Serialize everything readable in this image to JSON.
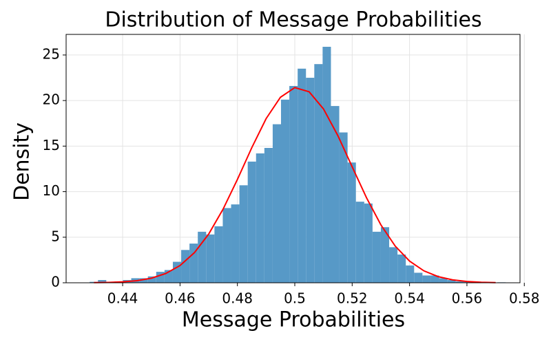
{
  "chart_data": {
    "type": "histogram",
    "title": "Distribution of Message Probabilities",
    "x_label": "Message Probabilities",
    "y_label": "Density",
    "color": "#5799c7",
    "bins": [
      0.4285,
      0.4314,
      0.4343,
      0.4372,
      0.4401,
      0.443,
      0.4459,
      0.4488,
      0.4517,
      0.4546,
      0.4575,
      0.4604,
      0.4633,
      0.4662,
      0.4691,
      0.472,
      0.4749,
      0.4778,
      0.4807,
      0.4836,
      0.4865,
      0.4894,
      0.4923,
      0.4952,
      0.4981,
      0.501,
      0.5039,
      0.5068,
      0.5097,
      0.5126,
      0.5155,
      0.5184,
      0.5213,
      0.5242,
      0.5271,
      0.53,
      0.5329,
      0.5358,
      0.5387,
      0.5416,
      0.5445,
      0.5474,
      0.5503,
      0.5532,
      0.5561,
      0.559,
      0.5619,
      0.5648,
      0.5677,
      0.5706,
      0.5735
    ],
    "values": [
      0.1,
      0.3,
      0.1,
      0.15,
      0.3,
      0.5,
      0.5,
      0.7,
      1.2,
      1.4,
      2.3,
      3.6,
      4.3,
      5.6,
      5.3,
      6.2,
      8.2,
      8.6,
      10.7,
      13.3,
      14.2,
      14.8,
      17.4,
      20.1,
      21.6,
      23.5,
      22.5,
      24.0,
      25.9,
      19.4,
      16.5,
      13.2,
      8.9,
      8.7,
      5.6,
      6.1,
      3.9,
      3.1,
      1.9,
      1.1,
      0.8,
      0.8,
      0.5,
      0.3,
      0.15,
      0.1,
      0.05,
      0.05,
      0,
      0.05
    ],
    "curve": {
      "color": "#ff0000",
      "x": [
        0.43,
        0.435,
        0.44,
        0.445,
        0.45,
        0.455,
        0.46,
        0.465,
        0.47,
        0.475,
        0.48,
        0.485,
        0.49,
        0.495,
        0.5,
        0.505,
        0.51,
        0.515,
        0.52,
        0.525,
        0.53,
        0.535,
        0.54,
        0.545,
        0.55,
        0.555,
        0.56,
        0.565,
        0.57
      ],
      "values": [
        0.015,
        0.04,
        0.1,
        0.23,
        0.5,
        1.01,
        1.89,
        3.3,
        5.35,
        8.08,
        11.34,
        14.82,
        18.01,
        20.36,
        21.42,
        20.96,
        19.08,
        16.16,
        12.73,
        9.33,
        6.36,
        4.03,
        2.38,
        1.31,
        0.67,
        0.32,
        0.14,
        0.06,
        0.02
      ]
    },
    "xlim": [
      0.4203,
      0.5785
    ],
    "ylim": [
      0,
      27.26
    ],
    "xticks": [
      0.44,
      0.46,
      0.48,
      0.5,
      0.52,
      0.54,
      0.56,
      0.58
    ],
    "yticks": [
      0,
      5,
      10,
      15,
      20,
      25
    ],
    "grid": true
  }
}
